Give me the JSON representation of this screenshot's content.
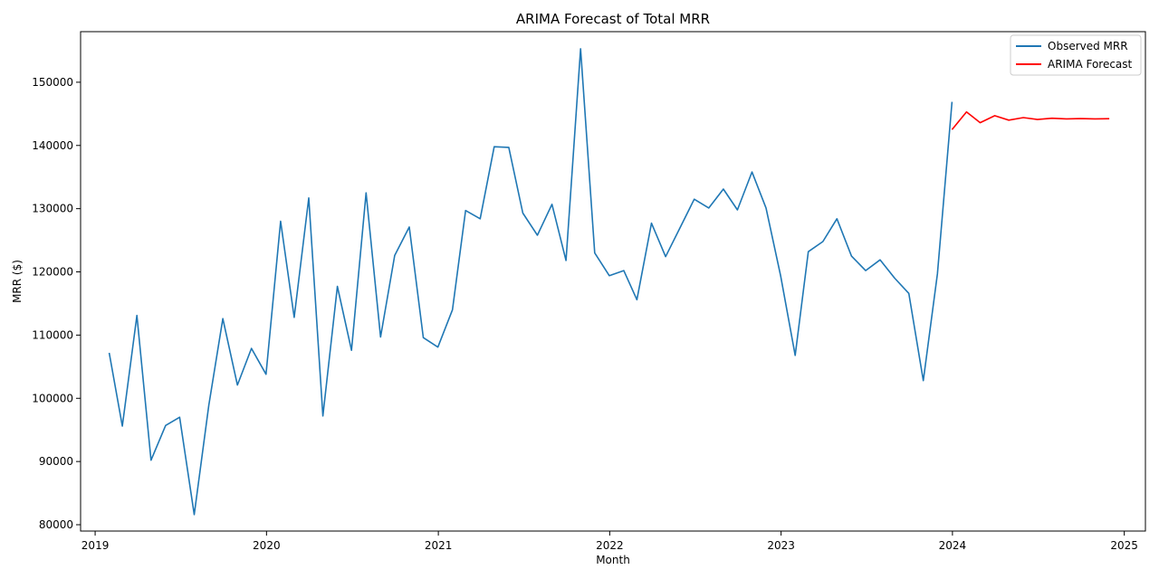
{
  "chart_data": {
    "type": "line",
    "title": "ARIMA Forecast of Total MRR",
    "xlabel": "Month",
    "ylabel": "MRR ($)",
    "xlim": [
      "2018-12-01",
      "2025-02-15"
    ],
    "ylim": [
      79000,
      158000
    ],
    "x_ticks": [
      "2019",
      "2020",
      "2021",
      "2022",
      "2023",
      "2024",
      "2025"
    ],
    "y_ticks": [
      80000,
      90000,
      100000,
      110000,
      120000,
      130000,
      140000,
      150000
    ],
    "grid": false,
    "legend_position": "top-right",
    "series": [
      {
        "name": "Observed MRR",
        "color": "#1f77b4",
        "x": [
          "2019-01-31",
          "2019-02-28",
          "2019-03-31",
          "2019-04-30",
          "2019-05-31",
          "2019-06-30",
          "2019-07-31",
          "2019-08-31",
          "2019-09-30",
          "2019-10-31",
          "2019-11-30",
          "2019-12-31",
          "2020-01-31",
          "2020-02-29",
          "2020-03-31",
          "2020-04-30",
          "2020-05-31",
          "2020-06-30",
          "2020-07-31",
          "2020-08-31",
          "2020-09-30",
          "2020-10-31",
          "2020-11-30",
          "2020-12-31",
          "2021-01-31",
          "2021-02-28",
          "2021-03-31",
          "2021-04-30",
          "2021-05-31",
          "2021-06-30",
          "2021-07-31",
          "2021-08-31",
          "2021-09-30",
          "2021-10-31",
          "2021-11-30",
          "2021-12-31",
          "2022-01-31",
          "2022-02-28",
          "2022-03-31",
          "2022-04-30",
          "2022-05-31",
          "2022-06-30",
          "2022-07-31",
          "2022-08-31",
          "2022-09-30",
          "2022-10-31",
          "2022-11-30",
          "2022-12-31",
          "2023-01-31",
          "2023-02-28",
          "2023-03-31",
          "2023-04-30",
          "2023-05-31",
          "2023-06-30",
          "2023-07-31",
          "2023-08-31",
          "2023-09-30",
          "2023-10-31",
          "2023-11-30",
          "2023-12-31"
        ],
        "y": [
          107200,
          95600,
          113100,
          90200,
          95700,
          97000,
          81600,
          98900,
          112600,
          102100,
          107900,
          103800,
          128000,
          112800,
          131700,
          97200,
          117700,
          107600,
          132500,
          109700,
          122600,
          127100,
          109600,
          108100,
          114000,
          129700,
          128400,
          139800,
          139700,
          129300,
          125800,
          130700,
          121800,
          155300,
          123000,
          119400,
          120200,
          115600,
          127700,
          122400,
          127000,
          131500,
          130100,
          133100,
          129800,
          135800,
          130100,
          119400,
          106800,
          123200,
          124800,
          128400,
          122500,
          120200,
          121900,
          119000,
          116600,
          102800,
          119700,
          146900
        ]
      },
      {
        "name": "ARIMA Forecast",
        "color": "#ff0000",
        "x": [
          "2023-12-31",
          "2024-01-31",
          "2024-02-29",
          "2024-03-31",
          "2024-04-30",
          "2024-05-31",
          "2024-06-30",
          "2024-07-31",
          "2024-08-31",
          "2024-09-30",
          "2024-10-31",
          "2024-11-30"
        ],
        "y": [
          142500,
          145300,
          143600,
          144700,
          144000,
          144400,
          144100,
          144300,
          144200,
          144250,
          144200,
          144230
        ]
      }
    ]
  }
}
